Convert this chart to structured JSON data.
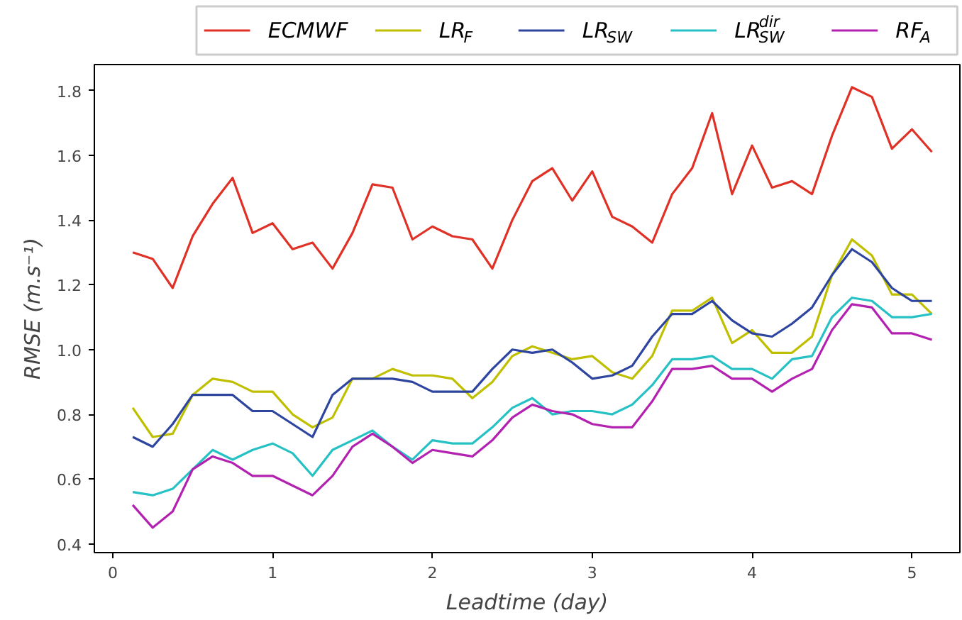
{
  "chart_data": {
    "type": "line",
    "xlabel": "Leadtime (day)",
    "ylabel": "RMSE (m.s⁻¹)",
    "x": [
      0.125,
      0.25,
      0.375,
      0.5,
      0.625,
      0.75,
      0.875,
      1.0,
      1.125,
      1.25,
      1.375,
      1.5,
      1.625,
      1.75,
      1.875,
      2.0,
      2.125,
      2.25,
      2.375,
      2.5,
      2.625,
      2.75,
      2.875,
      3.0,
      3.125,
      3.25,
      3.375,
      3.5,
      3.625,
      3.75,
      3.875,
      4.0,
      4.125,
      4.25,
      4.375,
      4.5,
      4.625,
      4.75,
      4.875,
      5.0,
      5.125
    ],
    "series": [
      {
        "name": "ECMWF",
        "color": "#e03127",
        "values": [
          1.3,
          1.28,
          1.19,
          1.35,
          1.45,
          1.53,
          1.36,
          1.39,
          1.31,
          1.33,
          1.25,
          1.36,
          1.51,
          1.5,
          1.34,
          1.38,
          1.35,
          1.34,
          1.25,
          1.4,
          1.52,
          1.56,
          1.46,
          1.55,
          1.41,
          1.38,
          1.33,
          1.48,
          1.56,
          1.73,
          1.48,
          1.63,
          1.5,
          1.52,
          1.48,
          1.66,
          1.81,
          1.78,
          1.62,
          1.68,
          1.61
        ]
      },
      {
        "name": "LR$_{F}$",
        "color": "#bfbf00",
        "values": [
          0.82,
          0.73,
          0.74,
          0.86,
          0.91,
          0.9,
          0.87,
          0.87,
          0.8,
          0.76,
          0.79,
          0.91,
          0.91,
          0.94,
          0.92,
          0.92,
          0.91,
          0.85,
          0.9,
          0.98,
          1.01,
          0.99,
          0.97,
          0.98,
          0.93,
          0.91,
          0.98,
          1.12,
          1.12,
          1.16,
          1.02,
          1.06,
          0.99,
          0.99,
          1.04,
          1.23,
          1.34,
          1.29,
          1.17,
          1.17,
          1.11
        ]
      },
      {
        "name": "LR$_{SW}$",
        "color": "#2e45a0",
        "values": [
          0.73,
          0.7,
          0.77,
          0.86,
          0.86,
          0.86,
          0.81,
          0.81,
          0.77,
          0.73,
          0.86,
          0.91,
          0.91,
          0.91,
          0.9,
          0.87,
          0.87,
          0.87,
          0.94,
          1.0,
          0.99,
          1.0,
          0.96,
          0.91,
          0.92,
          0.95,
          1.04,
          1.11,
          1.11,
          1.15,
          1.09,
          1.05,
          1.04,
          1.08,
          1.13,
          1.23,
          1.31,
          1.27,
          1.19,
          1.15,
          1.15
        ]
      },
      {
        "name": "LR$_{SW}$$^{dir}$",
        "color": "#26c1c4",
        "values": [
          0.56,
          0.55,
          0.57,
          0.63,
          0.69,
          0.66,
          0.69,
          0.71,
          0.68,
          0.61,
          0.69,
          0.72,
          0.75,
          0.7,
          0.66,
          0.72,
          0.71,
          0.71,
          0.76,
          0.82,
          0.85,
          0.8,
          0.81,
          0.81,
          0.8,
          0.83,
          0.89,
          0.97,
          0.97,
          0.98,
          0.94,
          0.94,
          0.91,
          0.97,
          0.98,
          1.1,
          1.16,
          1.15,
          1.1,
          1.1,
          1.11
        ]
      },
      {
        "name": "RF$_{A}$",
        "color": "#b321b0",
        "values": [
          0.52,
          0.45,
          0.5,
          0.63,
          0.67,
          0.65,
          0.61,
          0.61,
          0.58,
          0.55,
          0.61,
          0.7,
          0.74,
          0.7,
          0.65,
          0.69,
          0.68,
          0.67,
          0.72,
          0.79,
          0.83,
          0.81,
          0.8,
          0.77,
          0.76,
          0.76,
          0.84,
          0.94,
          0.94,
          0.95,
          0.91,
          0.91,
          0.87,
          0.91,
          0.94,
          1.06,
          1.14,
          1.13,
          1.05,
          1.05,
          1.03
        ]
      }
    ],
    "xlim": [
      -0.115,
      5.3
    ],
    "ylim": [
      0.373,
      1.88
    ],
    "xticks": [
      0,
      1,
      2,
      3,
      4,
      5
    ],
    "yticks": [
      0.4,
      0.6,
      0.8,
      {
        "value": 1.0,
        "label": "1.0"
      },
      1.2,
      1.4,
      1.6,
      1.8
    ],
    "grid": false,
    "legend": "top",
    "marker": "none",
    "line_style": "solid"
  }
}
